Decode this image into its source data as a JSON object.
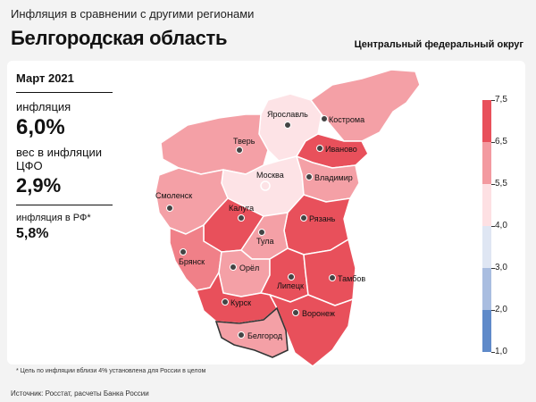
{
  "header": {
    "top_title": "Инфляция в сравнении с другими регионами",
    "region": "Белгородская область",
    "district": "Центральный федеральный округ"
  },
  "panel": {
    "month": "Март 2021",
    "inflation_label": "инфляция",
    "inflation_value": "6,0%",
    "weight_label": "вес в инфляции ЦФО",
    "weight_value": "2,9%",
    "rf_label": "инфляция в РФ*",
    "rf_value": "5,8%"
  },
  "footnote": "* Цель по инфляции вблизи 4% установлена для России в целом",
  "source": "Источник: Росстат, расчеты Банка России",
  "legend": {
    "ticks": [
      "7,5",
      "6,5",
      "5,5",
      "4,0",
      "3,0",
      "2,0",
      "1,0"
    ],
    "colors": [
      "#e8505b",
      "#f39aa0",
      "#fde0e3",
      "#dfe6f3",
      "#a9bde0",
      "#5f8ac9"
    ]
  },
  "regions": [
    {
      "name": "Ярославль",
      "color": "#fde3e6"
    },
    {
      "name": "Кострома",
      "color": "#f4a0a6"
    },
    {
      "name": "Тверь",
      "color": "#f4a0a6"
    },
    {
      "name": "Иваново",
      "color": "#e8505b"
    },
    {
      "name": "Москва",
      "color": "#fde3e6"
    },
    {
      "name": "Владимир",
      "color": "#f4a0a6"
    },
    {
      "name": "Смоленск",
      "color": "#f4a0a6"
    },
    {
      "name": "Калуга",
      "color": "#e8505b"
    },
    {
      "name": "Рязань",
      "color": "#e8505b"
    },
    {
      "name": "Тула",
      "color": "#f4a0a6"
    },
    {
      "name": "Брянск",
      "color": "#f08088"
    },
    {
      "name": "Орёл",
      "color": "#f4a0a6"
    },
    {
      "name": "Липецк",
      "color": "#e8505b"
    },
    {
      "name": "Тамбов",
      "color": "#e8505b"
    },
    {
      "name": "Курск",
      "color": "#e8505b"
    },
    {
      "name": "Воронеж",
      "color": "#e8505b"
    },
    {
      "name": "Белгород",
      "color": "#f4a0a6"
    }
  ]
}
